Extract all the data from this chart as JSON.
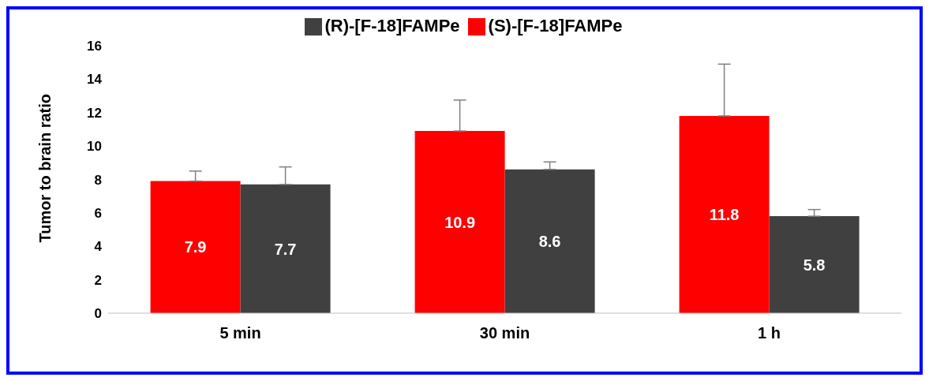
{
  "chart_data": {
    "type": "bar",
    "ylabel": "Tumor to brain ratio",
    "categories": [
      "5 min",
      "30 min",
      "1 h"
    ],
    "series": [
      {
        "name": "(S)-[F-18]FAMPe",
        "color": "#ff0000",
        "values": [
          7.9,
          10.9,
          11.8
        ],
        "errors": [
          [
            7.9,
            8.5
          ],
          [
            10.9,
            12.75
          ],
          [
            11.8,
            14.9
          ]
        ]
      },
      {
        "name": "(R)-[F-18]FAMPe",
        "color": "#404040",
        "values": [
          7.7,
          8.6,
          5.8
        ],
        "errors": [
          [
            7.7,
            8.75
          ],
          [
            8.6,
            9.05
          ],
          [
            5.8,
            6.2
          ]
        ]
      }
    ],
    "ylim": [
      0,
      16
    ],
    "yticks": [
      0,
      2,
      4,
      6,
      8,
      10,
      12,
      14,
      16
    ],
    "data_labels": true,
    "legend": "top",
    "grid": false
  }
}
